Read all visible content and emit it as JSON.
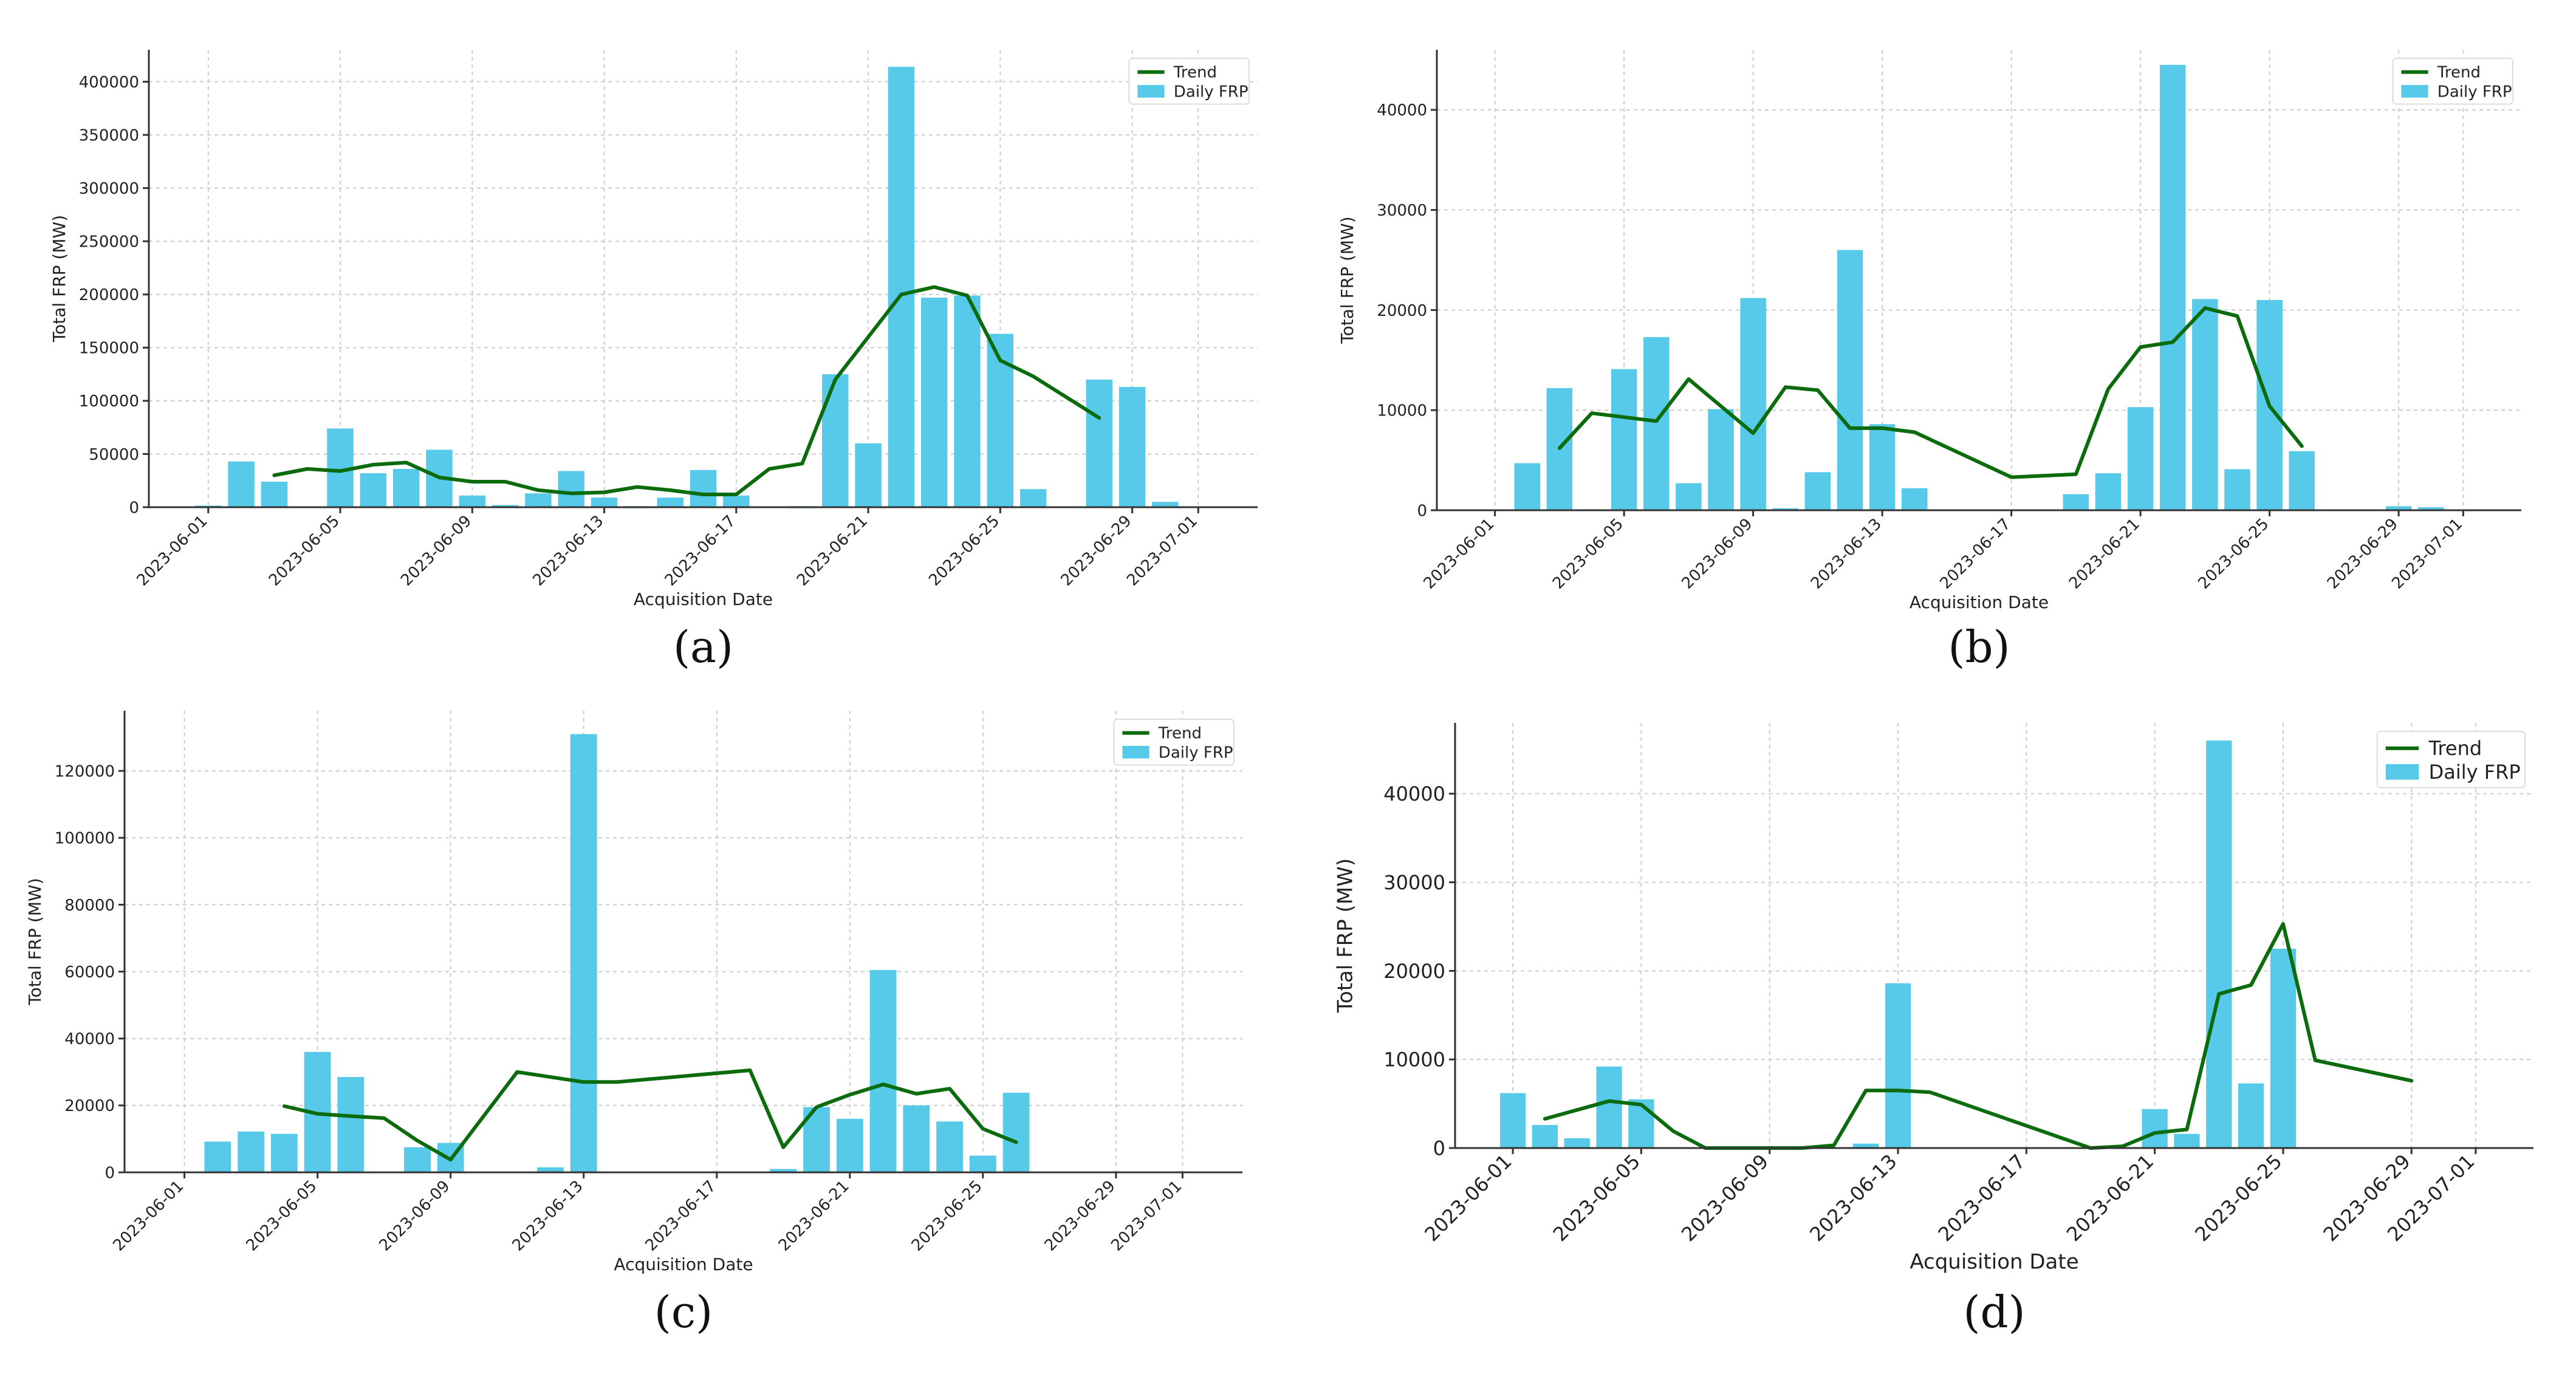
{
  "colors": {
    "bar": "#56cae8",
    "trend": "#0c6b0c",
    "grid": "#cccccc",
    "axis": "#333333",
    "text": "#222222"
  },
  "chart_data": [
    {
      "panel": "(a)",
      "type": "bar",
      "title": "",
      "xlabel": "Acquisition Date",
      "ylabel": "Total FRP (MW)",
      "ylim": [
        0,
        430000
      ],
      "yticks": [
        0,
        50000,
        100000,
        150000,
        200000,
        250000,
        300000,
        350000,
        400000
      ],
      "ytick_labels": [
        "0",
        "50000",
        "100000",
        "150000",
        "200000",
        "250000",
        "300000",
        "350000",
        "400000"
      ],
      "xlim": [
        -1.8,
        31.8
      ],
      "xticks": [
        0,
        4,
        8,
        12,
        16,
        20,
        24,
        28,
        30
      ],
      "xtick_labels": [
        "2023-06-01",
        "2023-06-05",
        "2023-06-09",
        "2023-06-13",
        "2023-06-17",
        "2023-06-21",
        "2023-06-25",
        "2023-06-29",
        "2023-07-01"
      ],
      "legend": [
        "Trend",
        "Daily FRP"
      ],
      "legend_location": "top-right",
      "grid": true,
      "bars": [
        {
          "x": 0,
          "y": 1500
        },
        {
          "x": 1,
          "y": 43000
        },
        {
          "x": 2,
          "y": 24000
        },
        {
          "x": 4,
          "y": 74000
        },
        {
          "x": 5,
          "y": 32000
        },
        {
          "x": 6,
          "y": 36000
        },
        {
          "x": 7,
          "y": 54000
        },
        {
          "x": 8,
          "y": 11000
        },
        {
          "x": 9,
          "y": 2000
        },
        {
          "x": 10,
          "y": 13000
        },
        {
          "x": 11,
          "y": 34000
        },
        {
          "x": 12,
          "y": 9000
        },
        {
          "x": 13,
          "y": 1000
        },
        {
          "x": 14,
          "y": 9000
        },
        {
          "x": 15,
          "y": 35000
        },
        {
          "x": 16,
          "y": 11000
        },
        {
          "x": 18,
          "y": 1000
        },
        {
          "x": 19,
          "y": 125000
        },
        {
          "x": 20,
          "y": 60000
        },
        {
          "x": 21,
          "y": 414000
        },
        {
          "x": 22,
          "y": 197000
        },
        {
          "x": 23,
          "y": 199000
        },
        {
          "x": 24,
          "y": 163000
        },
        {
          "x": 25,
          "y": 17000
        },
        {
          "x": 27,
          "y": 120000
        },
        {
          "x": 28,
          "y": 113000
        },
        {
          "x": 29,
          "y": 5000
        }
      ],
      "trend": [
        {
          "x": 2,
          "y": 30000
        },
        {
          "x": 3,
          "y": 36000
        },
        {
          "x": 4,
          "y": 34000
        },
        {
          "x": 5,
          "y": 40000
        },
        {
          "x": 6,
          "y": 42000
        },
        {
          "x": 7,
          "y": 28000
        },
        {
          "x": 8,
          "y": 24000
        },
        {
          "x": 9,
          "y": 24000
        },
        {
          "x": 10,
          "y": 16000
        },
        {
          "x": 11,
          "y": 13000
        },
        {
          "x": 12,
          "y": 14000
        },
        {
          "x": 13,
          "y": 19000
        },
        {
          "x": 14,
          "y": 16000
        },
        {
          "x": 15,
          "y": 12000
        },
        {
          "x": 16,
          "y": 12000
        },
        {
          "x": 17,
          "y": 36000
        },
        {
          "x": 18,
          "y": 41000
        },
        {
          "x": 19,
          "y": 120000
        },
        {
          "x": 20,
          "y": 160000
        },
        {
          "x": 21,
          "y": 200000
        },
        {
          "x": 22,
          "y": 207000
        },
        {
          "x": 23,
          "y": 199000
        },
        {
          "x": 24,
          "y": 138000
        },
        {
          "x": 25,
          "y": 123000
        },
        {
          "x": 27,
          "y": 84000
        }
      ]
    },
    {
      "panel": "(b)",
      "type": "bar",
      "title": "",
      "xlabel": "Acquisition Date",
      "ylabel": "Total FRP (MW)",
      "ylim": [
        0,
        46000
      ],
      "yticks": [
        0,
        10000,
        20000,
        30000,
        40000
      ],
      "ytick_labels": [
        "0",
        "10000",
        "20000",
        "30000",
        "40000"
      ],
      "xlim": [
        -1.8,
        31.8
      ],
      "xticks": [
        0,
        4,
        8,
        12,
        16,
        20,
        24,
        28,
        30
      ],
      "xtick_labels": [
        "2023-06-01",
        "2023-06-05",
        "2023-06-09",
        "2023-06-13",
        "2023-06-17",
        "2023-06-21",
        "2023-06-25",
        "2023-06-29",
        "2023-07-01"
      ],
      "legend": [
        "Trend",
        "Daily FRP"
      ],
      "legend_location": "top-right",
      "grid": true,
      "bars": [
        {
          "x": 1,
          "y": 4700
        },
        {
          "x": 2,
          "y": 12200
        },
        {
          "x": 3,
          "y": 100
        },
        {
          "x": 4,
          "y": 14100
        },
        {
          "x": 5,
          "y": 17300
        },
        {
          "x": 6,
          "y": 2700
        },
        {
          "x": 7,
          "y": 10100
        },
        {
          "x": 8,
          "y": 21200
        },
        {
          "x": 9,
          "y": 200
        },
        {
          "x": 10,
          "y": 3800
        },
        {
          "x": 11,
          "y": 26000
        },
        {
          "x": 12,
          "y": 8600
        },
        {
          "x": 13,
          "y": 2200
        },
        {
          "x": 18,
          "y": 1600
        },
        {
          "x": 19,
          "y": 3700
        },
        {
          "x": 20,
          "y": 10300
        },
        {
          "x": 21,
          "y": 44500
        },
        {
          "x": 22,
          "y": 21100
        },
        {
          "x": 23,
          "y": 4100
        },
        {
          "x": 24,
          "y": 21000
        },
        {
          "x": 25,
          "y": 5900
        },
        {
          "x": 28,
          "y": 400
        },
        {
          "x": 29,
          "y": 300
        }
      ],
      "trend": [
        {
          "x": 2,
          "y": 6200
        },
        {
          "x": 3,
          "y": 9700
        },
        {
          "x": 5,
          "y": 8900
        },
        {
          "x": 6,
          "y": 13100
        },
        {
          "x": 8,
          "y": 7700
        },
        {
          "x": 9,
          "y": 12300
        },
        {
          "x": 10,
          "y": 12000
        },
        {
          "x": 11,
          "y": 8200
        },
        {
          "x": 12,
          "y": 8200
        },
        {
          "x": 13,
          "y": 7800
        },
        {
          "x": 16,
          "y": 3300
        },
        {
          "x": 18,
          "y": 3600
        },
        {
          "x": 19,
          "y": 12100
        },
        {
          "x": 20,
          "y": 16300
        },
        {
          "x": 21,
          "y": 16800
        },
        {
          "x": 22,
          "y": 20200
        },
        {
          "x": 23,
          "y": 19400
        },
        {
          "x": 24,
          "y": 10400
        },
        {
          "x": 25,
          "y": 6400
        }
      ]
    },
    {
      "panel": "(c)",
      "type": "bar",
      "title": "",
      "xlabel": "Acquisition Date",
      "ylabel": "Total FRP (MW)",
      "ylim": [
        0,
        138000
      ],
      "yticks": [
        0,
        20000,
        40000,
        60000,
        80000,
        100000,
        120000
      ],
      "ytick_labels": [
        "0",
        "20000",
        "40000",
        "60000",
        "80000",
        "100000",
        "120000"
      ],
      "xlim": [
        -1.8,
        31.8
      ],
      "xticks": [
        0,
        4,
        8,
        12,
        16,
        20,
        24,
        28,
        30
      ],
      "xtick_labels": [
        "2023-06-01",
        "2023-06-05",
        "2023-06-09",
        "2023-06-13",
        "2023-06-17",
        "2023-06-21",
        "2023-06-25",
        "2023-06-29",
        "2023-07-01"
      ],
      "legend": [
        "Trend",
        "Daily FRP"
      ],
      "legend_location": "top-right",
      "grid": true,
      "bars": [
        {
          "x": 1,
          "y": 9200
        },
        {
          "x": 2,
          "y": 12200
        },
        {
          "x": 3,
          "y": 11500
        },
        {
          "x": 4,
          "y": 36000
        },
        {
          "x": 5,
          "y": 28500
        },
        {
          "x": 7,
          "y": 7500
        },
        {
          "x": 8,
          "y": 8800
        },
        {
          "x": 11,
          "y": 1500
        },
        {
          "x": 12,
          "y": 131000
        },
        {
          "x": 18,
          "y": 1000
        },
        {
          "x": 19,
          "y": 19500
        },
        {
          "x": 20,
          "y": 16000
        },
        {
          "x": 21,
          "y": 60500
        },
        {
          "x": 22,
          "y": 20000
        },
        {
          "x": 23,
          "y": 15200
        },
        {
          "x": 24,
          "y": 5000
        },
        {
          "x": 25,
          "y": 23800
        }
      ],
      "trend": [
        {
          "x": 3,
          "y": 19800
        },
        {
          "x": 4,
          "y": 17500
        },
        {
          "x": 5,
          "y": 16800
        },
        {
          "x": 6,
          "y": 16200
        },
        {
          "x": 7,
          "y": 9500
        },
        {
          "x": 8,
          "y": 3800
        },
        {
          "x": 10,
          "y": 30000
        },
        {
          "x": 12,
          "y": 27000
        },
        {
          "x": 13,
          "y": 27000
        },
        {
          "x": 17,
          "y": 30500
        },
        {
          "x": 18,
          "y": 7500
        },
        {
          "x": 19,
          "y": 19500
        },
        {
          "x": 20,
          "y": 23200
        },
        {
          "x": 21,
          "y": 26300
        },
        {
          "x": 22,
          "y": 23500
        },
        {
          "x": 23,
          "y": 25000
        },
        {
          "x": 24,
          "y": 13000
        },
        {
          "x": 25,
          "y": 9000
        }
      ]
    },
    {
      "panel": "(d)",
      "type": "bar",
      "title": "",
      "xlabel": "Acquisition Date",
      "ylabel": "Total FRP (MW)",
      "ylim": [
        0,
        48000
      ],
      "yticks": [
        0,
        10000,
        20000,
        30000,
        40000
      ],
      "ytick_labels": [
        "0",
        "10000",
        "20000",
        "30000",
        "40000"
      ],
      "xlim": [
        -1.8,
        31.8
      ],
      "xticks": [
        0,
        4,
        8,
        12,
        16,
        20,
        24,
        28,
        30
      ],
      "xtick_labels": [
        "2023-06-01",
        "2023-06-05",
        "2023-06-09",
        "2023-06-13",
        "2023-06-17",
        "2023-06-21",
        "2023-06-25",
        "2023-06-29",
        "2023-07-01"
      ],
      "legend": [
        "Trend",
        "Daily FRP"
      ],
      "legend_location": "top-right",
      "grid": true,
      "bars": [
        {
          "x": 0,
          "y": 6200
        },
        {
          "x": 1,
          "y": 2600
        },
        {
          "x": 2,
          "y": 1100
        },
        {
          "x": 3,
          "y": 9200
        },
        {
          "x": 4,
          "y": 5500
        },
        {
          "x": 11,
          "y": 500
        },
        {
          "x": 12,
          "y": 18600
        },
        {
          "x": 20,
          "y": 4400
        },
        {
          "x": 21,
          "y": 1600
        },
        {
          "x": 22,
          "y": 46000
        },
        {
          "x": 23,
          "y": 7300
        },
        {
          "x": 24,
          "y": 22500
        }
      ],
      "trend": [
        {
          "x": 1,
          "y": 3300
        },
        {
          "x": 3,
          "y": 5300
        },
        {
          "x": 4,
          "y": 4900
        },
        {
          "x": 5,
          "y": 1900
        },
        {
          "x": 6,
          "y": 0
        },
        {
          "x": 9,
          "y": 0
        },
        {
          "x": 10,
          "y": 300
        },
        {
          "x": 11,
          "y": 6500
        },
        {
          "x": 12,
          "y": 6500
        },
        {
          "x": 13,
          "y": 6300
        },
        {
          "x": 18,
          "y": 0
        },
        {
          "x": 19,
          "y": 200
        },
        {
          "x": 20,
          "y": 1700
        },
        {
          "x": 21,
          "y": 2100
        },
        {
          "x": 22,
          "y": 17400
        },
        {
          "x": 23,
          "y": 18400
        },
        {
          "x": 24,
          "y": 25300
        },
        {
          "x": 25,
          "y": 9900
        },
        {
          "x": 28,
          "y": 7600
        }
      ]
    }
  ]
}
